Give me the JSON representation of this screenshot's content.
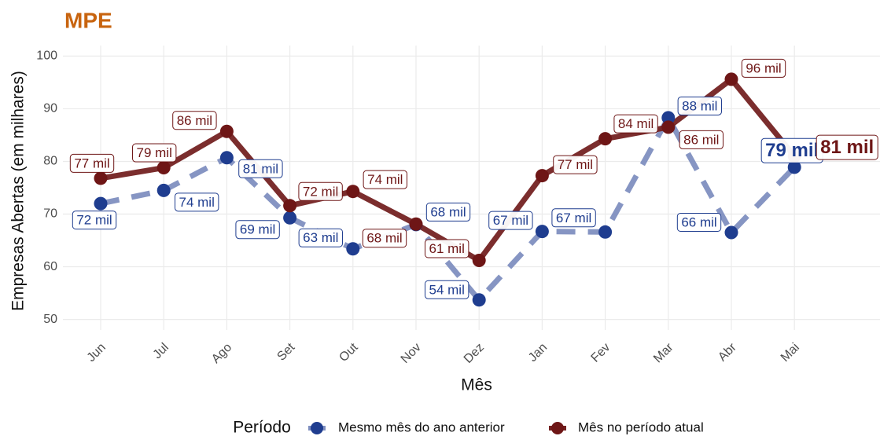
{
  "chart_data": {
    "type": "line",
    "title": "MPE",
    "x_label": "Mês",
    "y_label": "Empresas Abertas (em milhares)",
    "legend_title": "Período",
    "categories": [
      "Jun",
      "Jul",
      "Ago",
      "Set",
      "Out",
      "Nov",
      "Dez",
      "Jan",
      "Fev",
      "Mar",
      "Abr",
      "Mai"
    ],
    "series": [
      {
        "name": "Mesmo mês do ano anterior",
        "color": "#1f3d8f",
        "line_color": "#7f8fc0",
        "dashed": true,
        "values": [
          72,
          74.5,
          80.7,
          69.3,
          63.4,
          68,
          53.7,
          66.7,
          66.6,
          88.3,
          66.5,
          78.9
        ],
        "value_labels": [
          "72 mil",
          "74 mil",
          "81 mil",
          "69 mil",
          "63 mil",
          "68 mil",
          "54 mil",
          "67 mil",
          "67 mil",
          "88 mil",
          "66 mil",
          "79 mil"
        ]
      },
      {
        "name": "Mês no período atual",
        "color": "#6e1616",
        "line_color": "#742222",
        "dashed": false,
        "values": [
          76.8,
          78.8,
          85.7,
          71.6,
          74.3,
          68.1,
          61.2,
          77.3,
          84.3,
          86.5,
          95.6,
          81
        ],
        "value_labels": [
          "77 mil",
          "79 mil",
          "86 mil",
          "72 mil",
          "74 mil",
          "68 mil",
          "61 mil",
          "77 mil",
          "84 mil",
          "86 mil",
          "96 mil",
          "81 mil"
        ]
      }
    ],
    "ylim": [
      48,
      102
    ],
    "yticks": [
      50,
      60,
      70,
      80,
      90,
      100
    ],
    "grid": true
  }
}
